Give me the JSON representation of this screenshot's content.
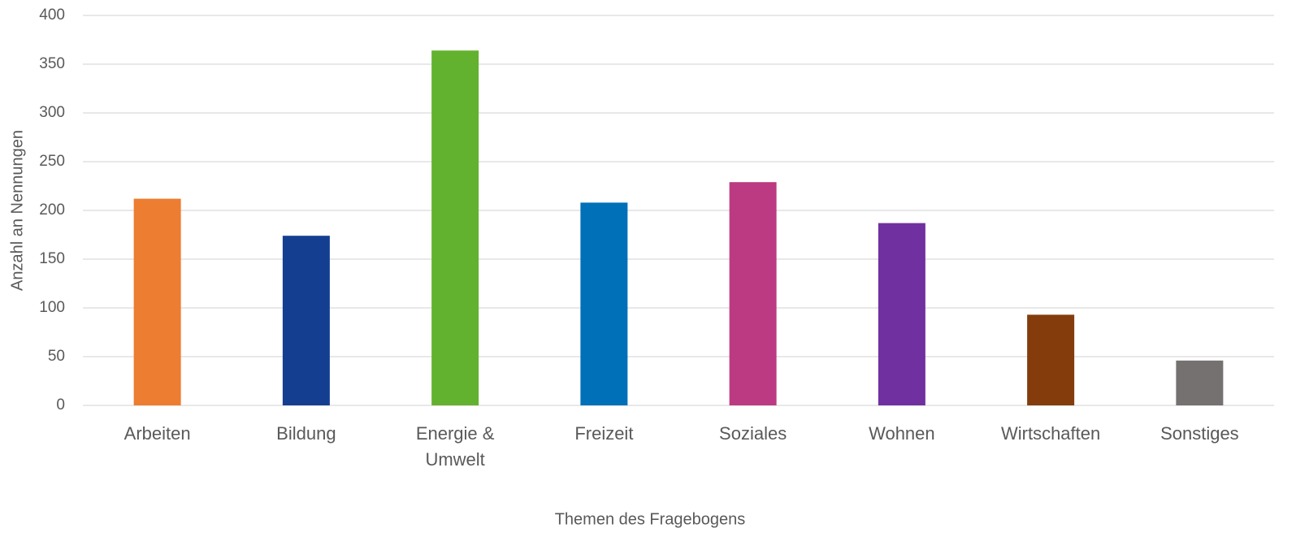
{
  "chart_data": {
    "type": "bar",
    "categories": [
      "Arbeiten",
      "Bildung",
      "Energie & Umwelt",
      "Freizeit",
      "Soziales",
      "Wohnen",
      "Wirtschaften",
      "Sonstiges"
    ],
    "values": [
      212,
      174,
      364,
      208,
      229,
      187,
      93,
      46
    ],
    "colors": [
      "#ed7d31",
      "#143f91",
      "#63b22f",
      "#0070b8",
      "#bc3a82",
      "#7030a0",
      "#843c0c",
      "#767171"
    ],
    "xlabel": "Themen des Fragebogens",
    "ylabel": "Anzahl an Nennungen",
    "ylim": [
      0,
      400
    ],
    "yticks": [
      0,
      50,
      100,
      150,
      200,
      250,
      300,
      350,
      400
    ],
    "grid": true
  }
}
